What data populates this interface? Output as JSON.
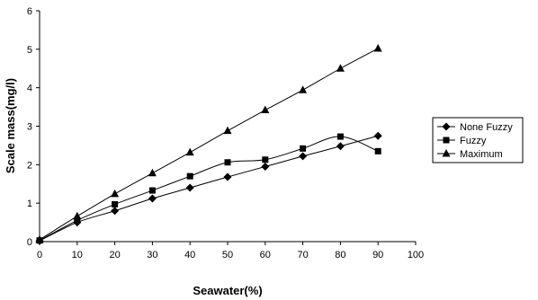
{
  "chart_data": {
    "type": "line",
    "xlabel": "Seawater(%)",
    "ylabel": "Scale mass(mg/l)",
    "xlim": [
      0,
      100
    ],
    "ylim": [
      0,
      6
    ],
    "xticks": [
      "0",
      "10",
      "20",
      "30",
      "40",
      "50",
      "60",
      "70",
      "80",
      "90",
      "100"
    ],
    "yticks": [
      "0",
      "1",
      "2",
      "3",
      "4",
      "5",
      "6"
    ],
    "grid": false,
    "legend_position": "right",
    "x": [
      0,
      10,
      20,
      30,
      40,
      50,
      60,
      70,
      80,
      90
    ],
    "series": [
      {
        "name": "None Fuzzy",
        "marker": "diamond",
        "values": [
          0.02,
          0.5,
          0.8,
          1.12,
          1.4,
          1.68,
          1.95,
          2.22,
          2.48,
          2.75
        ]
      },
      {
        "name": "Fuzzy",
        "marker": "square",
        "values": [
          0.03,
          0.55,
          0.97,
          1.33,
          1.7,
          2.06,
          2.13,
          2.42,
          2.73,
          2.35
        ]
      },
      {
        "name": "Maximum",
        "marker": "triangle",
        "values": [
          0.05,
          0.66,
          1.24,
          1.78,
          2.32,
          2.88,
          3.42,
          3.94,
          4.5,
          5.02
        ]
      }
    ],
    "line_color": "#000000"
  }
}
